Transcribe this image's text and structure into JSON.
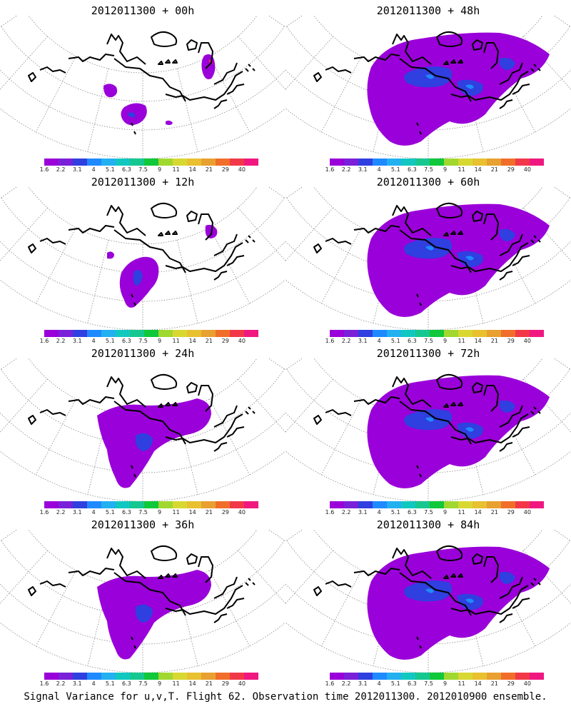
{
  "footer": "Signal Variance for u,v,T. Flight 62. Observation time 2012011300. 2012010900 ensemble.",
  "colorbar": {
    "colors": [
      "#9a00d9",
      "#7a20d9",
      "#2f3fe0",
      "#1f8aff",
      "#22b0f0",
      "#10c8c0",
      "#16c890",
      "#10c83a",
      "#a0d830",
      "#d8d832",
      "#e8c030",
      "#e8a030",
      "#f06e2a",
      "#f23848",
      "#f01880"
    ],
    "labels": [
      "1.6",
      "2.2",
      "3.1",
      "4",
      "5.1",
      "6.3",
      "7.5",
      "9",
      "11",
      "14",
      "21",
      "29",
      "40"
    ]
  },
  "panels": [
    {
      "title": "2012011300 + 00h",
      "lead_hours": 0,
      "coverage": "sparse"
    },
    {
      "title": "2012011300 + 48h",
      "lead_hours": 48,
      "coverage": "broad"
    },
    {
      "title": "2012011300 + 12h",
      "lead_hours": 12,
      "coverage": "small"
    },
    {
      "title": "2012011300 + 60h",
      "lead_hours": 60,
      "coverage": "broad"
    },
    {
      "title": "2012011300 + 24h",
      "lead_hours": 24,
      "coverage": "medium"
    },
    {
      "title": "2012011300 + 72h",
      "lead_hours": 72,
      "coverage": "broad"
    },
    {
      "title": "2012011300 + 36h",
      "lead_hours": 36,
      "coverage": "medium"
    },
    {
      "title": "2012011300 + 84h",
      "lead_hours": 84,
      "coverage": "broad"
    }
  ]
}
